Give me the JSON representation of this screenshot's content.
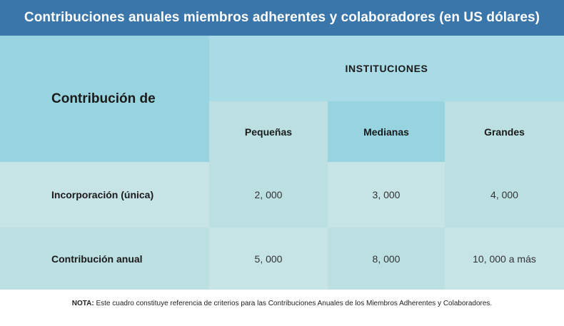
{
  "title": "Contribuciones anuales miembros adherentes y colaboradores (en US dólares)",
  "table": {
    "corner_header": "Contribución de",
    "group_header": "INSTITUCIONES",
    "columns": [
      "Pequeñas",
      "Medianas",
      "Grandes"
    ],
    "rows": [
      {
        "label": "Incorporación (única)",
        "values": [
          "2, 000",
          "3, 000",
          "4, 000"
        ]
      },
      {
        "label": "Contribución anual",
        "values": [
          "5, 000",
          "8, 000",
          "10, 000 a más"
        ]
      }
    ]
  },
  "note": {
    "prefix": "NOTA:",
    "text": " Este cuadro constituye referencia de criterios para las Contribuciones Anuales de los Miembros Adherentes y Colaboradores."
  },
  "colors": {
    "title_bar": "#3a76aa",
    "header_cyan": "#98d4e0",
    "header_light": "#a9dbe6",
    "cell_mid": "#bce0e2",
    "cell_light": "#c6e3e6"
  }
}
